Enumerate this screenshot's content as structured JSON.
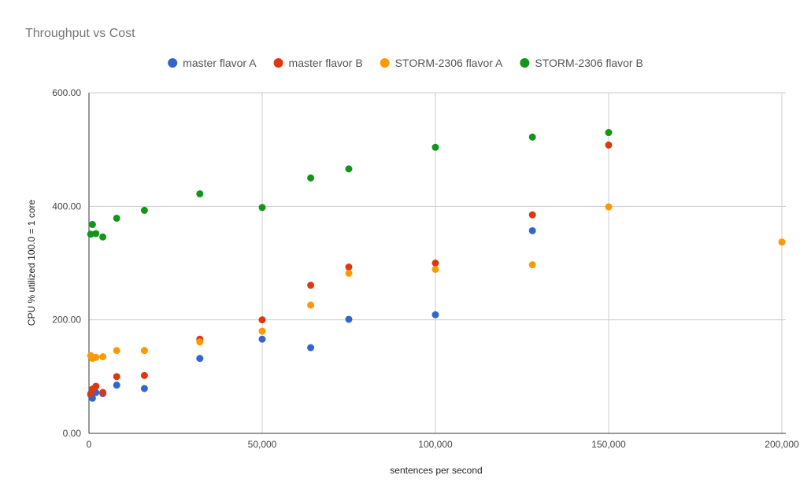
{
  "chart_data": {
    "type": "scatter",
    "title": "Throughput vs Cost",
    "xlabel": "sentences per second",
    "ylabel": "CPU % utilized 100.0 = 1 core",
    "xlim": [
      0,
      200000
    ],
    "ylim": [
      0,
      600
    ],
    "xticks": [
      0,
      50000,
      100000,
      150000,
      200000
    ],
    "xtick_labels": [
      "0",
      "50,000",
      "100,000",
      "150,000",
      "200,000"
    ],
    "yticks": [
      0,
      200,
      400,
      600
    ],
    "ytick_labels": [
      "0.00",
      "200.00",
      "400.00",
      "600.00"
    ],
    "grid": true,
    "legend_position": "top",
    "series": [
      {
        "name": "master flavor A",
        "color": "#3366cc",
        "points": [
          [
            500,
            68
          ],
          [
            1000,
            62
          ],
          [
            2000,
            72
          ],
          [
            4000,
            70
          ],
          [
            8000,
            85
          ],
          [
            16000,
            79
          ],
          [
            32000,
            132
          ],
          [
            50000,
            166
          ],
          [
            64000,
            151
          ],
          [
            75000,
            201
          ],
          [
            100000,
            209
          ],
          [
            128000,
            357
          ]
        ]
      },
      {
        "name": "master flavor B",
        "color": "#dc3912",
        "points": [
          [
            500,
            70
          ],
          [
            1000,
            78
          ],
          [
            2000,
            83
          ],
          [
            4000,
            72
          ],
          [
            8000,
            100
          ],
          [
            16000,
            102
          ],
          [
            32000,
            166
          ],
          [
            50000,
            200
          ],
          [
            64000,
            261
          ],
          [
            75000,
            293
          ],
          [
            100000,
            300
          ],
          [
            128000,
            385
          ],
          [
            150000,
            508
          ]
        ]
      },
      {
        "name": "STORM-2306 flavor A",
        "color": "#ff9900",
        "points": [
          [
            500,
            137
          ],
          [
            1000,
            132
          ],
          [
            2000,
            134
          ],
          [
            4000,
            135
          ],
          [
            8000,
            146
          ],
          [
            16000,
            146
          ],
          [
            32000,
            161
          ],
          [
            50000,
            180
          ],
          [
            64000,
            226
          ],
          [
            75000,
            282
          ],
          [
            100000,
            289
          ],
          [
            128000,
            297
          ],
          [
            150000,
            399
          ],
          [
            200000,
            337
          ]
        ]
      },
      {
        "name": "STORM-2306 flavor B",
        "color": "#109618",
        "points": [
          [
            500,
            351
          ],
          [
            1000,
            368
          ],
          [
            2000,
            352
          ],
          [
            4000,
            346
          ],
          [
            8000,
            379
          ],
          [
            16000,
            393
          ],
          [
            32000,
            422
          ],
          [
            50000,
            398
          ],
          [
            64000,
            450
          ],
          [
            75000,
            466
          ],
          [
            100000,
            504
          ],
          [
            128000,
            522
          ],
          [
            150000,
            530
          ]
        ]
      }
    ]
  }
}
